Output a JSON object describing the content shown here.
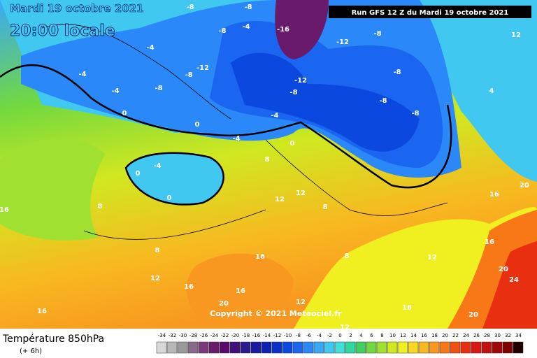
{
  "header": {
    "date": "Mardi 19 octobre 2021",
    "time": "20:00 locale",
    "run": "Run GFS 12 Z du Mardi 19 octobre 2021"
  },
  "copyright": "Copyright © 2021 Meteociel.fr",
  "footer": {
    "title": "Température 850hPa",
    "step": "(+ 6h)"
  },
  "scale": {
    "values": [
      -34,
      -32,
      -30,
      -28,
      -26,
      -24,
      -22,
      -20,
      -18,
      -16,
      -14,
      -12,
      -10,
      -8,
      -6,
      -4,
      -2,
      0,
      2,
      4,
      6,
      8,
      10,
      12,
      14,
      16,
      18,
      20,
      22,
      24,
      26,
      28,
      30,
      32,
      34
    ],
    "colors": [
      "#d8d8d8",
      "#b8b8b8",
      "#9a9a9a",
      "#8a6a8a",
      "#7a3a7a",
      "#6a1a6a",
      "#5a0a6a",
      "#40107a",
      "#2a1a8a",
      "#1a1aa0",
      "#1020b0",
      "#0a30c8",
      "#0a48e0",
      "#1a66f0",
      "#2a88f8",
      "#3aa8f8",
      "#40c8f0",
      "#40e0d8",
      "#30d8a0",
      "#40d060",
      "#70d840",
      "#a0e030",
      "#d0e820",
      "#f0f020",
      "#f8d820",
      "#f8b820",
      "#f89820",
      "#f87818",
      "#f05010",
      "#e83010",
      "#d81810",
      "#c01010",
      "#a00808",
      "#800000",
      "#200000"
    ]
  },
  "map_labels": [
    -8,
    -8,
    -16,
    -12,
    -8,
    -4,
    -4,
    -12,
    -8,
    -8,
    -4,
    -4,
    0,
    0,
    -12,
    -8,
    -8,
    -8,
    -8,
    -8,
    -4,
    -4,
    -4,
    0,
    0,
    0,
    8,
    12,
    12,
    8,
    16,
    8,
    8,
    8,
    16,
    12,
    16,
    16,
    20,
    12,
    16,
    4,
    16,
    20,
    20,
    24,
    20,
    12,
    12,
    16,
    12,
    16
  ]
}
